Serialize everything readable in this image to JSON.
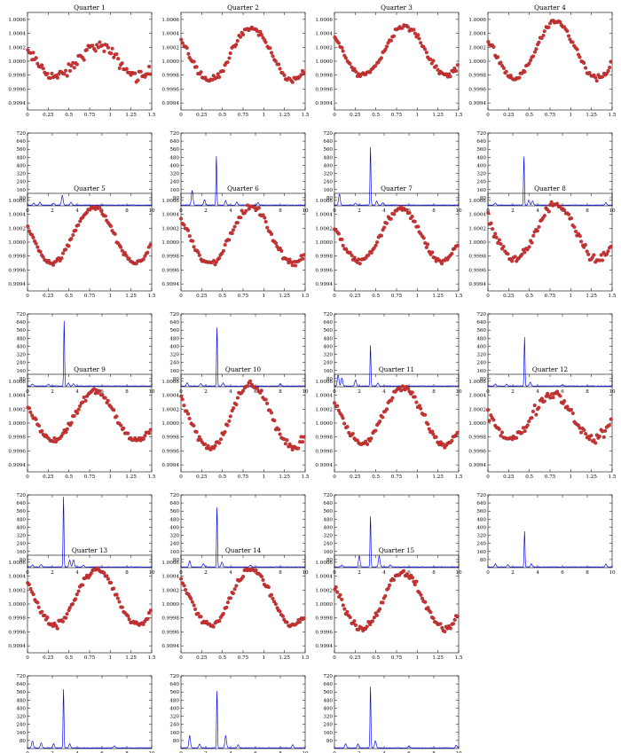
{
  "figure": {
    "colors": {
      "points": "#cc3333",
      "spectrum": "#0000ee",
      "axes": "#000000"
    }
  },
  "axes_template": {
    "lc_xticks": [
      "0",
      "0.25",
      "0.5",
      "0.75",
      "1",
      "1.25",
      "1.5"
    ],
    "lc_yticks": [
      "0.9994",
      "0.9996",
      "0.9998",
      "1.0000",
      "1.0002",
      "1.0004",
      "1.0006"
    ],
    "ps_xticks": [
      "0",
      "2",
      "4",
      "6",
      "8",
      "10"
    ],
    "ps_yticks": [
      "80",
      "160",
      "240",
      "320",
      "400",
      "480",
      "560",
      "640",
      "720"
    ]
  },
  "chart_data": [
    {
      "type": "scatter",
      "title": "Quarter 1",
      "panel": "light-curve",
      "x_range": [
        0,
        1.5
      ],
      "y_range": [
        0.9993,
        1.0007
      ],
      "model": {
        "mean": 1.0,
        "amplitude": 0.00022,
        "peak_phase": 0.85,
        "scatter": 7e-05
      }
    },
    {
      "type": "line",
      "title": "",
      "panel": "power-spectrum",
      "x_range": [
        0,
        10
      ],
      "y_range": [
        0,
        720
      ],
      "peaks": [
        {
          "x": 0.5,
          "y": 20
        },
        {
          "x": 1.0,
          "y": 30
        },
        {
          "x": 2.1,
          "y": 18
        },
        {
          "x": 2.8,
          "y": 95
        },
        {
          "x": 3.5,
          "y": 30
        }
      ]
    },
    {
      "type": "scatter",
      "title": "Quarter 2",
      "panel": "light-curve",
      "x_range": [
        0,
        1.5
      ],
      "y_range": [
        0.9993,
        1.0007
      ],
      "model": {
        "mean": 1.0001,
        "amplitude": 0.00037,
        "peak_phase": 0.85,
        "scatter": 4e-05
      }
    },
    {
      "type": "line",
      "title": "",
      "panel": "power-spectrum",
      "x_range": [
        0,
        10
      ],
      "y_range": [
        0,
        720
      ],
      "peaks": [
        {
          "x": 0.9,
          "y": 145
        },
        {
          "x": 1.9,
          "y": 55
        },
        {
          "x": 2.85,
          "y": 485
        },
        {
          "x": 3.6,
          "y": 45
        },
        {
          "x": 4.5,
          "y": 30
        },
        {
          "x": 6.2,
          "y": 25
        }
      ]
    },
    {
      "type": "scatter",
      "title": "Quarter 3",
      "panel": "light-curve",
      "x_range": [
        0,
        1.5
      ],
      "y_range": [
        0.9993,
        1.0007
      ],
      "model": {
        "mean": 1.00015,
        "amplitude": 0.00035,
        "peak_phase": 0.85,
        "scatter": 4e-05
      }
    },
    {
      "type": "line",
      "title": "",
      "panel": "power-spectrum",
      "x_range": [
        0,
        10
      ],
      "y_range": [
        0,
        720
      ],
      "peaks": [
        {
          "x": 0.4,
          "y": 110
        },
        {
          "x": 1.7,
          "y": 20
        },
        {
          "x": 2.9,
          "y": 570
        },
        {
          "x": 3.4,
          "y": 40
        },
        {
          "x": 3.9,
          "y": 25
        }
      ]
    },
    {
      "type": "scatter",
      "title": "Quarter 4",
      "panel": "light-curve",
      "x_range": [
        0,
        1.5
      ],
      "y_range": [
        0.9993,
        1.0007
      ],
      "model": {
        "mean": 1.00015,
        "amplitude": 0.0004,
        "peak_phase": 0.82,
        "scatter": 4e-05
      }
    },
    {
      "type": "line",
      "title": "",
      "panel": "power-spectrum",
      "x_range": [
        0,
        10
      ],
      "y_range": [
        0,
        720
      ],
      "peaks": [
        {
          "x": 0.6,
          "y": 20
        },
        {
          "x": 2.9,
          "y": 480
        },
        {
          "x": 3.3,
          "y": 50
        },
        {
          "x": 3.6,
          "y": 40
        },
        {
          "x": 9.5,
          "y": 25
        }
      ]
    },
    {
      "type": "scatter",
      "title": "Quarter 5",
      "panel": "light-curve",
      "x_range": [
        0,
        1.5
      ],
      "y_range": [
        0.9993,
        1.0007
      ],
      "model": {
        "mean": 1.0001,
        "amplitude": 0.0004,
        "peak_phase": 0.8,
        "scatter": 3e-05
      }
    },
    {
      "type": "line",
      "title": "",
      "panel": "power-spectrum",
      "x_range": [
        0,
        10
      ],
      "y_range": [
        0,
        720
      ],
      "peaks": [
        {
          "x": 0.4,
          "y": 20
        },
        {
          "x": 1.7,
          "y": 18
        },
        {
          "x": 2.95,
          "y": 640
        },
        {
          "x": 3.3,
          "y": 30
        },
        {
          "x": 3.7,
          "y": 20
        }
      ]
    },
    {
      "type": "scatter",
      "title": "Quarter 6",
      "panel": "light-curve",
      "x_range": [
        0,
        1.5
      ],
      "y_range": [
        0.9993,
        1.0007
      ],
      "model": {
        "mean": 1.0001,
        "amplitude": 0.0004,
        "peak_phase": 0.85,
        "scatter": 4e-05
      }
    },
    {
      "type": "line",
      "title": "",
      "panel": "power-spectrum",
      "x_range": [
        0,
        10
      ],
      "y_range": [
        0,
        720
      ],
      "peaks": [
        {
          "x": 0.5,
          "y": 30
        },
        {
          "x": 1.6,
          "y": 25
        },
        {
          "x": 2.9,
          "y": 580
        },
        {
          "x": 3.4,
          "y": 30
        },
        {
          "x": 8.0,
          "y": 22
        }
      ]
    },
    {
      "type": "scatter",
      "title": "Quarter 7",
      "panel": "light-curve",
      "x_range": [
        0,
        1.5
      ],
      "y_range": [
        0.9993,
        1.0007
      ],
      "model": {
        "mean": 1.0001,
        "amplitude": 0.00037,
        "peak_phase": 0.8,
        "scatter": 4e-05
      }
    },
    {
      "type": "line",
      "title": "",
      "panel": "power-spectrum",
      "x_range": [
        0,
        10
      ],
      "y_range": [
        0,
        720
      ],
      "peaks": [
        {
          "x": 0.3,
          "y": 110
        },
        {
          "x": 0.6,
          "y": 80
        },
        {
          "x": 1.7,
          "y": 60
        },
        {
          "x": 2.9,
          "y": 400
        },
        {
          "x": 3.5,
          "y": 30
        }
      ]
    },
    {
      "type": "scatter",
      "title": "Quarter 8",
      "panel": "light-curve",
      "x_range": [
        0,
        1.5
      ],
      "y_range": [
        0.9993,
        1.0007
      ],
      "model": {
        "mean": 1.00015,
        "amplitude": 0.0004,
        "peak_phase": 0.83,
        "scatter": 6e-05
      }
    },
    {
      "type": "line",
      "title": "",
      "panel": "power-spectrum",
      "x_range": [
        0,
        10
      ],
      "y_range": [
        0,
        720
      ],
      "peaks": [
        {
          "x": 0.6,
          "y": 20
        },
        {
          "x": 1.5,
          "y": 18
        },
        {
          "x": 2.95,
          "y": 480
        },
        {
          "x": 3.4,
          "y": 40
        },
        {
          "x": 6.0,
          "y": 15
        }
      ]
    },
    {
      "type": "scatter",
      "title": "Quarter 9",
      "panel": "light-curve",
      "x_range": [
        0,
        1.5
      ],
      "y_range": [
        0.9993,
        1.0007
      ],
      "model": {
        "mean": 1.0001,
        "amplitude": 0.00035,
        "peak_phase": 0.82,
        "scatter": 4e-05
      }
    },
    {
      "type": "line",
      "title": "",
      "panel": "power-spectrum",
      "x_range": [
        0,
        10
      ],
      "y_range": [
        0,
        720
      ],
      "peaks": [
        {
          "x": 0.4,
          "y": 20
        },
        {
          "x": 1.1,
          "y": 25
        },
        {
          "x": 2.9,
          "y": 690
        },
        {
          "x": 3.4,
          "y": 70
        },
        {
          "x": 3.7,
          "y": 70
        },
        {
          "x": 4.5,
          "y": 20
        }
      ]
    },
    {
      "type": "scatter",
      "title": "Quarter 10",
      "panel": "light-curve",
      "x_range": [
        0,
        1.5
      ],
      "y_range": [
        0.9993,
        1.0007
      ],
      "model": {
        "mean": 1.0001,
        "amplitude": 0.00045,
        "peak_phase": 0.85,
        "scatter": 5e-05
      }
    },
    {
      "type": "line",
      "title": "",
      "panel": "power-spectrum",
      "x_range": [
        0,
        10
      ],
      "y_range": [
        0,
        720
      ],
      "peaks": [
        {
          "x": 0.7,
          "y": 60
        },
        {
          "x": 1.8,
          "y": 35
        },
        {
          "x": 2.9,
          "y": 590
        },
        {
          "x": 3.3,
          "y": 50
        },
        {
          "x": 5.6,
          "y": 18
        }
      ]
    },
    {
      "type": "scatter",
      "title": "Quarter 11",
      "panel": "light-curve",
      "x_range": [
        0,
        1.5
      ],
      "y_range": [
        0.9993,
        1.0007
      ],
      "model": {
        "mean": 1.0001,
        "amplitude": 0.0004,
        "peak_phase": 0.83,
        "scatter": 4e-05
      }
    },
    {
      "type": "line",
      "title": "",
      "panel": "power-spectrum",
      "x_range": [
        0,
        10
      ],
      "y_range": [
        0,
        720
      ],
      "peaks": [
        {
          "x": 0.6,
          "y": 20
        },
        {
          "x": 2.0,
          "y": 110
        },
        {
          "x": 2.9,
          "y": 500
        },
        {
          "x": 3.6,
          "y": 110
        },
        {
          "x": 4.5,
          "y": 20
        }
      ]
    },
    {
      "type": "scatter",
      "title": "Quarter 12",
      "panel": "light-curve",
      "x_range": [
        0,
        1.5
      ],
      "y_range": [
        0.9993,
        1.0007
      ],
      "model": {
        "mean": 1.0001,
        "amplitude": 0.00033,
        "peak_phase": 0.78,
        "scatter": 6e-05
      }
    },
    {
      "type": "line",
      "title": "",
      "panel": "power-spectrum",
      "x_range": [
        0,
        10
      ],
      "y_range": [
        0,
        720
      ],
      "peaks": [
        {
          "x": 0.6,
          "y": 30
        },
        {
          "x": 1.6,
          "y": 25
        },
        {
          "x": 2.95,
          "y": 350
        },
        {
          "x": 3.5,
          "y": 30
        },
        {
          "x": 9.5,
          "y": 30
        }
      ]
    },
    {
      "type": "scatter",
      "title": "Quarter 13",
      "panel": "light-curve",
      "x_range": [
        0,
        1.5
      ],
      "y_range": [
        0.9993,
        1.0007
      ],
      "model": {
        "mean": 1.0001,
        "amplitude": 0.0004,
        "peak_phase": 0.83,
        "scatter": 4e-05
      }
    },
    {
      "type": "line",
      "title": "",
      "panel": "power-spectrum",
      "x_range": [
        0,
        10
      ],
      "y_range": [
        0,
        720
      ],
      "peaks": [
        {
          "x": 0.4,
          "y": 70
        },
        {
          "x": 1.1,
          "y": 50
        },
        {
          "x": 2.1,
          "y": 40
        },
        {
          "x": 2.9,
          "y": 580
        },
        {
          "x": 3.4,
          "y": 40
        },
        {
          "x": 7.0,
          "y": 18
        }
      ]
    },
    {
      "type": "scatter",
      "title": "Quarter 14",
      "panel": "light-curve",
      "x_range": [
        0,
        1.5
      ],
      "y_range": [
        0.9993,
        1.0007
      ],
      "model": {
        "mean": 1.0001,
        "amplitude": 0.0004,
        "peak_phase": 0.85,
        "scatter": 4e-05
      }
    },
    {
      "type": "line",
      "title": "",
      "panel": "power-spectrum",
      "x_range": [
        0,
        10
      ],
      "y_range": [
        0,
        720
      ],
      "peaks": [
        {
          "x": 0.7,
          "y": 120
        },
        {
          "x": 1.5,
          "y": 40
        },
        {
          "x": 2.9,
          "y": 560
        },
        {
          "x": 3.6,
          "y": 120
        },
        {
          "x": 4.6,
          "y": 30
        },
        {
          "x": 9.0,
          "y": 30
        }
      ]
    },
    {
      "type": "scatter",
      "title": "Quarter 15",
      "panel": "light-curve",
      "x_range": [
        0,
        1.5
      ],
      "y_range": [
        0.9993,
        1.0007
      ],
      "model": {
        "mean": 1.00005,
        "amplitude": 0.0004,
        "peak_phase": 0.83,
        "scatter": 4e-05
      }
    },
    {
      "type": "line",
      "title": "",
      "panel": "power-spectrum",
      "x_range": [
        0,
        10
      ],
      "y_range": [
        0,
        720
      ],
      "peaks": [
        {
          "x": 0.9,
          "y": 40
        },
        {
          "x": 1.9,
          "y": 40
        },
        {
          "x": 2.9,
          "y": 600
        },
        {
          "x": 3.3,
          "y": 70
        },
        {
          "x": 6.0,
          "y": 20
        },
        {
          "x": 9.8,
          "y": 25
        }
      ]
    }
  ]
}
